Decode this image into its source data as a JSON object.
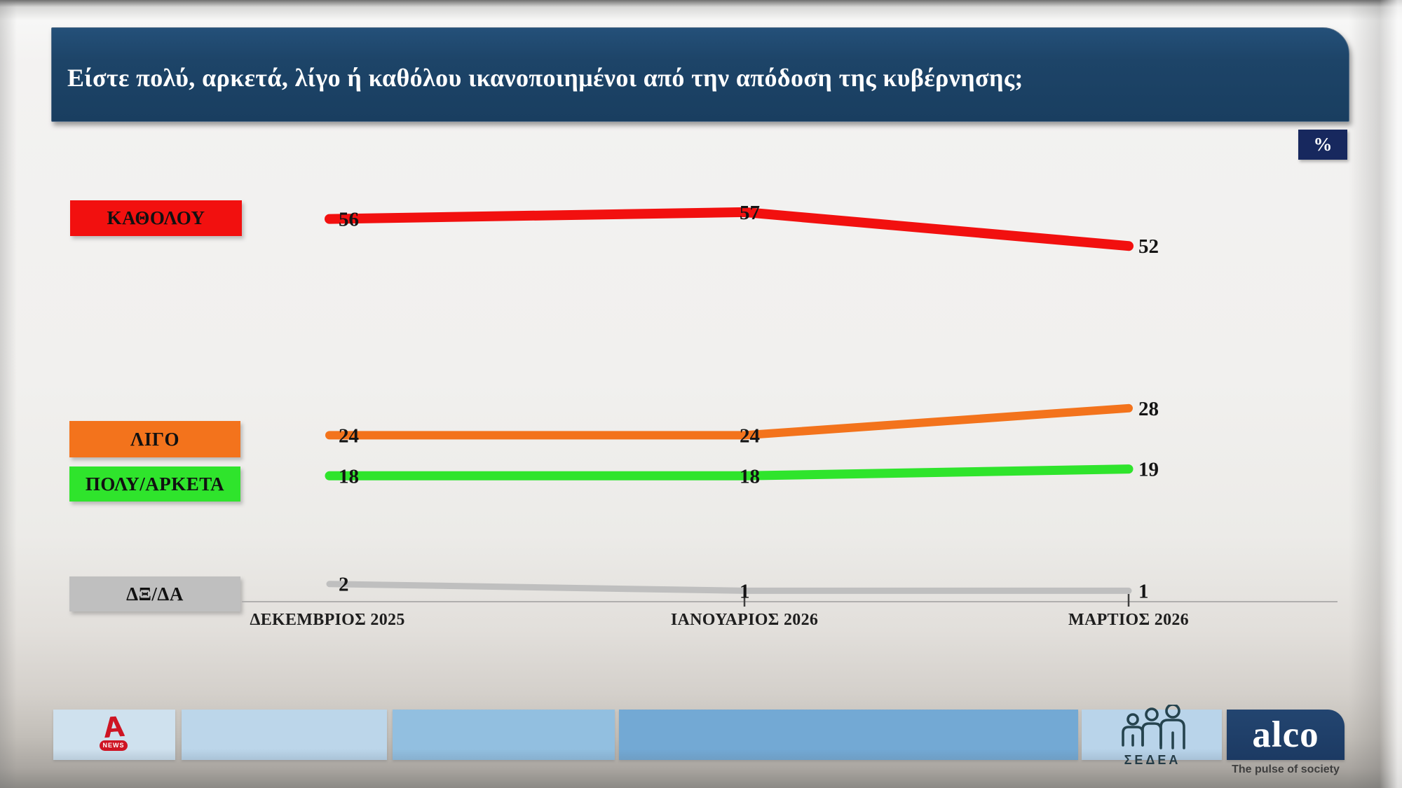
{
  "header": {
    "title": "Είστε πολύ, αρκετά, λίγο ή καθόλου ικανοποιημένοι από την απόδοση της κυβέρνησης;",
    "unit_badge": "%",
    "bg_color": "#1d4468",
    "badge_color": "#17285e"
  },
  "chart_data": {
    "type": "line",
    "categories": [
      "ΔΕΚΕΜΒΡΙΟΣ 2025",
      "ΙΑΝΟΥΑΡΙΟΣ 2026",
      "ΜΑΡΤΙΟΣ 2026"
    ],
    "series": [
      {
        "name": "ΚΑΘΟΛΟΥ",
        "color": "#f2100f",
        "values": [
          56,
          57,
          52
        ]
      },
      {
        "name": "ΛΙΓΟ",
        "color": "#f3731c",
        "values": [
          24,
          24,
          28
        ]
      },
      {
        "name": "ΠΟΛΥ/ΑΡΚΕΤΑ",
        "color": "#2fe42c",
        "values": [
          18,
          18,
          19
        ]
      },
      {
        "name": "ΔΞ/ΔΑ",
        "color": "#bfbfbf",
        "values": [
          2,
          1,
          1
        ]
      }
    ],
    "unit": "%",
    "ylim": [
      0,
      60
    ],
    "grid": false,
    "point_labels": true,
    "legend_position": "left"
  },
  "footer": {
    "alpha_news_label": "NEWS",
    "sedea_label": "ΣΕΔΕΑ",
    "alco_label": "alco",
    "alco_tagline": "The pulse of society",
    "band_colors": [
      "#cfe1ee",
      "#bcd6ea",
      "#92bfe0",
      "#73a9d4",
      "#b9d4ea"
    ]
  }
}
